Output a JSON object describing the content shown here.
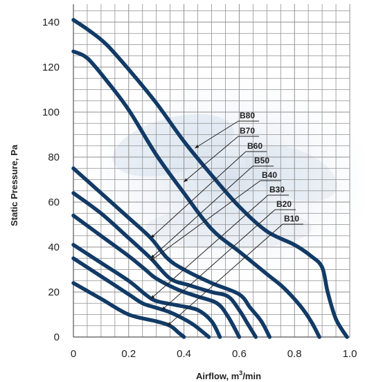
{
  "chart_data": {
    "type": "line",
    "title": "",
    "xlabel": "Airflow, m",
    "xlabel_sup": "3",
    "xlabel_suffix": "/min",
    "ylabel": "Static Pressure, Pa",
    "xlim": [
      0,
      1.0
    ],
    "ylim": [
      0,
      145
    ],
    "x_ticks": [
      "0",
      "0.2",
      "0.4",
      "0.6",
      "0.8",
      "1.0"
    ],
    "y_ticks": [
      "0",
      "20",
      "40",
      "60",
      "80",
      "100",
      "120",
      "140"
    ],
    "grid": true,
    "line_color": "#123a66",
    "series": [
      {
        "name": "B80",
        "x": [
          0,
          0.06,
          0.12,
          0.2,
          0.3,
          0.4,
          0.5,
          0.6,
          0.7,
          0.8,
          0.86,
          0.9,
          0.92,
          0.95,
          0.99
        ],
        "y": [
          141,
          136,
          130,
          119,
          104,
          87,
          72,
          58,
          47,
          41,
          36,
          31,
          20,
          8,
          0
        ]
      },
      {
        "name": "B70",
        "x": [
          0,
          0.05,
          0.12,
          0.2,
          0.3,
          0.4,
          0.5,
          0.6,
          0.7,
          0.76,
          0.82,
          0.86,
          0.89
        ],
        "y": [
          127,
          124,
          114,
          101,
          81,
          64,
          48,
          38,
          28,
          22,
          14,
          7,
          0
        ]
      },
      {
        "name": "B60",
        "x": [
          0,
          0.1,
          0.2,
          0.28,
          0.34,
          0.4,
          0.5,
          0.6,
          0.64,
          0.68,
          0.71
        ],
        "y": [
          75,
          64,
          53,
          44,
          35,
          30,
          24,
          19,
          13,
          7,
          0
        ]
      },
      {
        "name": "B50",
        "x": [
          0,
          0.1,
          0.2,
          0.28,
          0.35,
          0.42,
          0.5,
          0.56,
          0.6,
          0.63,
          0.66
        ],
        "y": [
          64,
          55,
          44,
          35,
          26,
          23,
          20,
          18,
          12,
          6,
          0
        ]
      },
      {
        "name": "B40",
        "x": [
          0,
          0.1,
          0.2,
          0.26,
          0.3,
          0.38,
          0.45,
          0.52,
          0.56,
          0.6
        ],
        "y": [
          54,
          45,
          36,
          30,
          26,
          21,
          18,
          15,
          9,
          0
        ]
      },
      {
        "name": "B30",
        "x": [
          0,
          0.1,
          0.2,
          0.26,
          0.3,
          0.38,
          0.45,
          0.5,
          0.53
        ],
        "y": [
          41,
          33,
          25,
          19,
          16,
          14,
          12,
          7,
          0
        ]
      },
      {
        "name": "B20",
        "x": [
          0,
          0.1,
          0.2,
          0.25,
          0.3,
          0.35,
          0.4,
          0.44,
          0.49
        ],
        "y": [
          35,
          27,
          19,
          15,
          13,
          11,
          8,
          5,
          0
        ]
      },
      {
        "name": "B10",
        "x": [
          0,
          0.1,
          0.2,
          0.3,
          0.35,
          0.38,
          0.4
        ],
        "y": [
          24,
          17,
          10,
          7,
          5,
          2,
          0
        ]
      }
    ]
  }
}
